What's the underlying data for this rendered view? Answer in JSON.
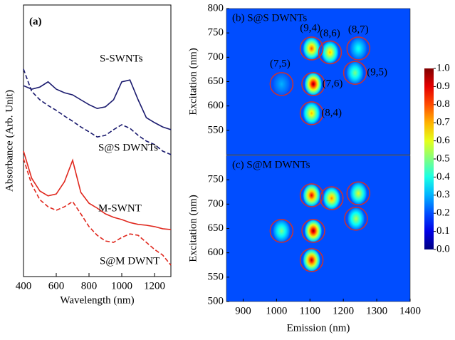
{
  "chart_data": [
    {
      "type": "line",
      "panel_label": "(a)",
      "x_label": "Wavelength (nm)",
      "y_label": "Absorbance (Arb. Unit)",
      "x": [
        400,
        450,
        500,
        550,
        600,
        650,
        700,
        750,
        800,
        850,
        900,
        950,
        1000,
        1050,
        1100,
        1150,
        1200,
        1250,
        1300
      ],
      "xlim": [
        400,
        1300
      ],
      "xticks": [
        400,
        600,
        800,
        1000,
        1200
      ],
      "ylim": [
        0,
        1
      ],
      "series": [
        {
          "name": "S-SWNTs",
          "color": "#1a1a6e",
          "dash": false,
          "values": [
            0.703,
            0.69,
            0.698,
            0.717,
            0.69,
            0.677,
            0.669,
            0.651,
            0.633,
            0.619,
            0.625,
            0.651,
            0.717,
            0.724,
            0.651,
            0.585,
            0.567,
            0.551,
            0.541
          ]
        },
        {
          "name": "S@S DWNTs",
          "color": "#1a1a6e",
          "dash": true,
          "values": [
            0.764,
            0.682,
            0.651,
            0.63,
            0.612,
            0.591,
            0.572,
            0.551,
            0.533,
            0.514,
            0.52,
            0.541,
            0.559,
            0.546,
            0.52,
            0.499,
            0.486,
            0.462,
            0.449
          ]
        },
        {
          "name": "M-SWNT",
          "color": "#e0281e",
          "dash": false,
          "values": [
            0.462,
            0.362,
            0.315,
            0.297,
            0.304,
            0.349,
            0.428,
            0.31,
            0.27,
            0.252,
            0.231,
            0.218,
            0.21,
            0.199,
            0.192,
            0.189,
            0.184,
            0.176,
            0.173
          ]
        },
        {
          "name": "S@M DWNT",
          "color": "#e0281e",
          "dash": true,
          "values": [
            0.434,
            0.339,
            0.283,
            0.257,
            0.244,
            0.257,
            0.276,
            0.231,
            0.184,
            0.152,
            0.131,
            0.126,
            0.144,
            0.157,
            0.152,
            0.126,
            0.1,
            0.079,
            0.042
          ]
        }
      ]
    },
    {
      "type": "heatmap",
      "title": "(b) S@S DWNTs",
      "y_label": "Excitation (nm)",
      "xlim": [
        850,
        1400
      ],
      "ylim": [
        500,
        800
      ],
      "yticks": [
        550,
        600,
        650,
        700,
        750,
        800
      ],
      "background": 0.2,
      "labels": [
        "(7,5)",
        "(9,4)",
        "(8,6)",
        "(8,7)",
        "(7,6)",
        "(9,5)",
        "(8,4)"
      ],
      "x": [
        1015,
        1105,
        1160,
        1245,
        1110,
        1235,
        1105
      ],
      "y": [
        645,
        718,
        710,
        718,
        645,
        668,
        585
      ],
      "values": [
        0.3,
        0.8,
        0.7,
        0.4,
        1.0,
        0.5,
        0.7
      ]
    },
    {
      "type": "heatmap",
      "title": "(c) S@M DWNTs",
      "x_label": "Emission (nm)",
      "y_label": "Excitation (nm)",
      "xlim": [
        850,
        1400
      ],
      "xticks": [
        900,
        1000,
        1100,
        1200,
        1300,
        1400
      ],
      "ylim": [
        500,
        800
      ],
      "yticks": [
        500,
        550,
        600,
        650,
        700,
        750
      ],
      "background": 0.2,
      "x": [
        1015,
        1105,
        1165,
        1245,
        1110,
        1238,
        1105
      ],
      "y": [
        645,
        718,
        712,
        722,
        645,
        670,
        585
      ],
      "values": [
        0.5,
        0.9,
        0.75,
        0.6,
        1.0,
        0.55,
        0.95
      ]
    },
    {
      "type": "colorbar",
      "ylim": [
        0,
        1
      ],
      "yticks": [
        {
          "value": 0,
          "label": "0.0"
        },
        {
          "value": 0.1,
          "label": "0.1"
        },
        {
          "value": 0.2,
          "label": "0.2"
        },
        {
          "value": 0.3,
          "label": "0.3"
        },
        {
          "value": 0.4,
          "label": "0.4"
        },
        {
          "value": 0.5,
          "label": "0.5"
        },
        {
          "value": 0.6,
          "label": "0.6"
        },
        {
          "value": 0.7,
          "label": "0.7"
        },
        {
          "value": 0.8,
          "label": "0.8"
        },
        {
          "value": 0.9,
          "label": "0.9"
        },
        {
          "value": 1,
          "label": "1.0"
        }
      ]
    }
  ]
}
